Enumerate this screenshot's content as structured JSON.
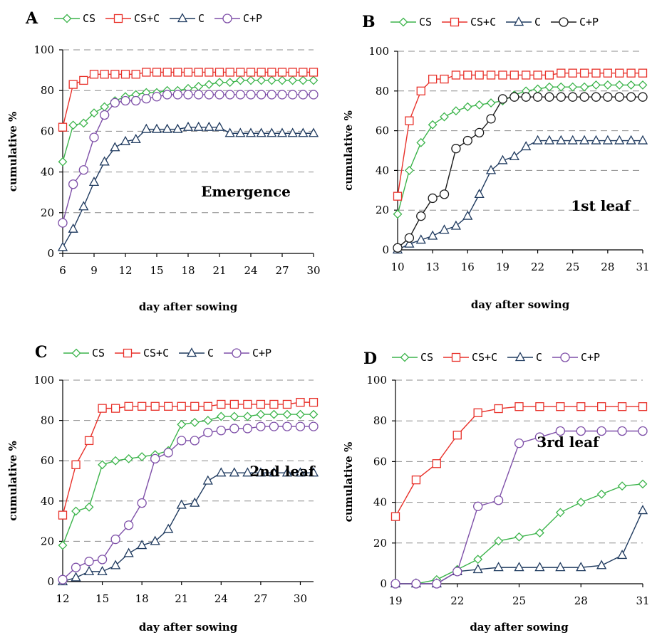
{
  "chart_data": [
    {
      "type": "line",
      "panel": "A",
      "annotation": "Emergence",
      "xlabel": "day after sowing",
      "ylabel": "cumulative %",
      "xlim": [
        6,
        30
      ],
      "ylim": [
        0,
        100
      ],
      "xticks": [
        6,
        9,
        12,
        15,
        18,
        21,
        24,
        27,
        30
      ],
      "yticks": [
        0,
        20,
        40,
        60,
        80,
        100
      ],
      "grid": "horizontal dashed",
      "legend": "top",
      "x": [
        6,
        7,
        8,
        9,
        10,
        11,
        12,
        13,
        14,
        15,
        16,
        17,
        18,
        19,
        20,
        21,
        22,
        23,
        24,
        25,
        26,
        27,
        28,
        29,
        30
      ],
      "series": [
        {
          "name": "CS",
          "color": "#3cb44b",
          "marker": "diamond",
          "values": [
            45,
            63,
            64,
            69,
            72,
            75,
            77,
            78,
            79,
            79,
            80,
            80,
            81,
            82,
            83,
            84,
            84,
            85,
            85,
            85,
            85,
            85,
            85,
            85,
            85
          ]
        },
        {
          "name": "CS+C",
          "color": "#e8312a",
          "marker": "square",
          "values": [
            62,
            83,
            85,
            88,
            88,
            88,
            88,
            88,
            89,
            89,
            89,
            89,
            89,
            89,
            89,
            89,
            89,
            89,
            89,
            89,
            89,
            89,
            89,
            89,
            89
          ]
        },
        {
          "name": "C",
          "color": "#1f3a5f",
          "marker": "triangle",
          "values": [
            3,
            12,
            23,
            35,
            45,
            52,
            55,
            56,
            61,
            61,
            61,
            61,
            62,
            62,
            62,
            62,
            59,
            59,
            59,
            59,
            59,
            59,
            59,
            59,
            59
          ]
        },
        {
          "name": "C+P",
          "color": "#7e4fa8",
          "marker": "circle",
          "values": [
            15,
            34,
            41,
            57,
            68,
            74,
            75,
            75,
            76,
            77,
            78,
            78,
            78,
            78,
            78,
            78,
            78,
            78,
            78,
            78,
            78,
            78,
            78,
            78,
            78
          ]
        }
      ]
    },
    {
      "type": "line",
      "panel": "B",
      "annotation": "1st leaf",
      "xlabel": "day after sowing",
      "ylabel": "cumulative %",
      "xlim": [
        10,
        31
      ],
      "ylim": [
        0,
        100
      ],
      "xticks": [
        10,
        13,
        16,
        19,
        22,
        25,
        28,
        31
      ],
      "yticks": [
        0,
        20,
        40,
        60,
        80,
        100
      ],
      "grid": "horizontal dashed",
      "legend": "top",
      "x": [
        10,
        11,
        12,
        13,
        14,
        15,
        16,
        17,
        18,
        19,
        20,
        21,
        22,
        23,
        24,
        25,
        26,
        27,
        28,
        29,
        30,
        31
      ],
      "series": [
        {
          "name": "CS",
          "color": "#3cb44b",
          "marker": "diamond",
          "values": [
            18,
            40,
            54,
            63,
            67,
            70,
            72,
            73,
            74,
            75,
            78,
            80,
            81,
            82,
            82,
            82,
            82,
            83,
            83,
            83,
            83,
            83
          ]
        },
        {
          "name": "CS+C",
          "color": "#e8312a",
          "marker": "square",
          "values": [
            27,
            65,
            80,
            86,
            86,
            88,
            88,
            88,
            88,
            88,
            88,
            88,
            88,
            88,
            89,
            89,
            89,
            89,
            89,
            89,
            89,
            89
          ]
        },
        {
          "name": "C",
          "color": "#1f3a5f",
          "marker": "triangle",
          "values": [
            0,
            3,
            5,
            7,
            10,
            12,
            17,
            28,
            40,
            45,
            47,
            52,
            55,
            55,
            55,
            55,
            55,
            55,
            55,
            55,
            55,
            55
          ]
        },
        {
          "name": "C+P",
          "color": "#1a1a1a",
          "marker": "circle",
          "values": [
            1,
            6,
            17,
            26,
            28,
            51,
            55,
            59,
            66,
            76,
            77,
            77,
            77,
            77,
            77,
            77,
            77,
            77,
            77,
            77,
            77,
            77
          ]
        }
      ]
    },
    {
      "type": "line",
      "panel": "C",
      "annotation": "2nd leaf",
      "xlabel": "day after sowing",
      "ylabel": "cumulative %",
      "xlim": [
        12,
        31
      ],
      "ylim": [
        0,
        100
      ],
      "xticks": [
        12,
        15,
        18,
        21,
        24,
        27,
        30
      ],
      "yticks": [
        0,
        20,
        40,
        60,
        80,
        100
      ],
      "grid": "horizontal dashed",
      "legend": "top",
      "x": [
        12,
        13,
        14,
        15,
        16,
        17,
        18,
        19,
        20,
        21,
        22,
        23,
        24,
        25,
        26,
        27,
        28,
        29,
        30,
        31
      ],
      "series": [
        {
          "name": "CS",
          "color": "#3cb44b",
          "marker": "diamond",
          "values": [
            18,
            35,
            37,
            58,
            60,
            61,
            62,
            63,
            65,
            78,
            79,
            80,
            82,
            82,
            82,
            83,
            83,
            83,
            83,
            83
          ]
        },
        {
          "name": "CS+C",
          "color": "#e8312a",
          "marker": "square",
          "values": [
            33,
            58,
            70,
            86,
            86,
            87,
            87,
            87,
            87,
            87,
            87,
            87,
            88,
            88,
            88,
            88,
            88,
            88,
            89,
            89
          ]
        },
        {
          "name": "C",
          "color": "#1f3a5f",
          "marker": "triangle",
          "values": [
            0,
            2,
            5,
            5,
            8,
            14,
            18,
            20,
            26,
            38,
            39,
            50,
            54,
            54,
            54,
            54,
            54,
            54,
            54,
            54
          ]
        },
        {
          "name": "C+P",
          "color": "#7e4fa8",
          "marker": "circle",
          "values": [
            1,
            7,
            10,
            11,
            21,
            28,
            39,
            61,
            64,
            70,
            70,
            74,
            75,
            76,
            76,
            77,
            77,
            77,
            77,
            77
          ]
        }
      ]
    },
    {
      "type": "line",
      "panel": "D",
      "annotation": "3rd leaf",
      "xlabel": "day after sowing",
      "ylabel": "cumulative %",
      "xlim": [
        19,
        31
      ],
      "ylim": [
        0,
        100
      ],
      "xticks": [
        19,
        22,
        25,
        28,
        31
      ],
      "yticks": [
        0,
        20,
        40,
        60,
        80,
        100
      ],
      "grid": "horizontal dashed",
      "legend": "top",
      "x": [
        19,
        20,
        21,
        22,
        23,
        24,
        25,
        26,
        27,
        28,
        29,
        30,
        31
      ],
      "series": [
        {
          "name": "CS",
          "color": "#3cb44b",
          "marker": "diamond",
          "values": [
            0,
            0,
            2,
            7,
            12,
            21,
            23,
            25,
            35,
            40,
            44,
            48,
            49
          ]
        },
        {
          "name": "CS+C",
          "color": "#e8312a",
          "marker": "square",
          "values": [
            33,
            51,
            59,
            73,
            84,
            86,
            87,
            87,
            87,
            87,
            87,
            87,
            87
          ]
        },
        {
          "name": "C",
          "color": "#1f3a5f",
          "marker": "triangle",
          "values": [
            0,
            0,
            0,
            6,
            7,
            8,
            8,
            8,
            8,
            8,
            9,
            14,
            36
          ]
        },
        {
          "name": "C+P",
          "color": "#7e4fa8",
          "marker": "circle",
          "values": [
            0,
            0,
            0,
            6,
            38,
            41,
            69,
            72,
            75,
            75,
            75,
            75,
            75
          ]
        }
      ]
    }
  ]
}
